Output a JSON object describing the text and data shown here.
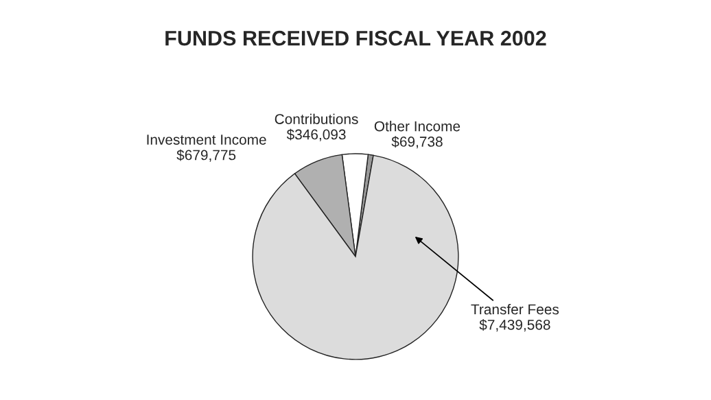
{
  "chart_data": {
    "type": "pie",
    "title": "FUNDS RECEIVED FISCAL YEAR 2002",
    "categories": [
      "Other Income",
      "Contributions",
      "Investment Income",
      "Transfer Fees"
    ],
    "values": [
      69738,
      346093,
      679775,
      7439568
    ],
    "value_labels": [
      "$69,738",
      "$346,093",
      "$679,775",
      "$7,439,568"
    ],
    "colors": [
      "#9a9a9a",
      "#ffffff",
      "#b0b0b0",
      "#dcdcdc"
    ]
  }
}
